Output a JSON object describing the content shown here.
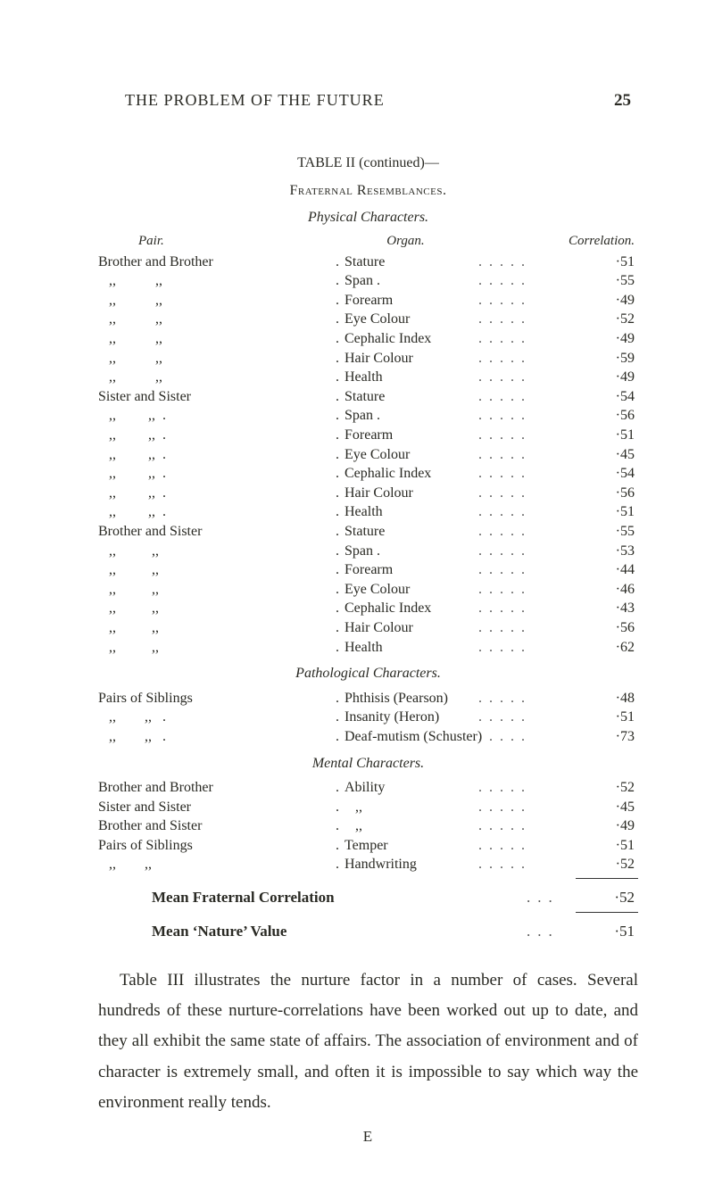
{
  "header": {
    "title": "THE PROBLEM OF THE FUTURE",
    "page": "25"
  },
  "table": {
    "label": "TABLE II (continued)—",
    "subtitle": "Fraternal Resemblances.",
    "columns": {
      "pair": "Pair.",
      "organ": "Organ.",
      "corr": "Correlation."
    },
    "sections": [
      {
        "heading": "Physical Characters.",
        "rows": [
          {
            "pair": "Brother and Brother",
            "organ": "Stature",
            "corr": "·51"
          },
          {
            "pair": "   ,,           ,,",
            "organ": "Span .",
            "corr": "·55"
          },
          {
            "pair": "   ,,           ,,",
            "organ": "Forearm",
            "corr": "·49"
          },
          {
            "pair": "   ,,           ,,",
            "organ": "Eye Colour",
            "corr": "·52"
          },
          {
            "pair": "   ,,           ,,",
            "organ": "Cephalic Index",
            "corr": "·49"
          },
          {
            "pair": "   ,,           ,,",
            "organ": "Hair Colour",
            "corr": "·59"
          },
          {
            "pair": "   ,,           ,,",
            "organ": "Health",
            "corr": "·49"
          },
          {
            "pair": "Sister and Sister",
            "organ": "Stature",
            "corr": "·54"
          },
          {
            "pair": "   ,,         ,,  .",
            "organ": "Span .",
            "corr": "·56"
          },
          {
            "pair": "   ,,         ,,  .",
            "organ": "Forearm",
            "corr": "·51"
          },
          {
            "pair": "   ,,         ,,  .",
            "organ": "Eye Colour",
            "corr": "·45"
          },
          {
            "pair": "   ,,         ,,  .",
            "organ": "Cephalic Index",
            "corr": "·54"
          },
          {
            "pair": "   ,,         ,,  .",
            "organ": "Hair Colour",
            "corr": "·56"
          },
          {
            "pair": "   ,,         ,,  .",
            "organ": "Health",
            "corr": "·51"
          },
          {
            "pair": "Brother and Sister",
            "organ": "Stature",
            "corr": "·55"
          },
          {
            "pair": "   ,,          ,,",
            "organ": "Span .",
            "corr": "·53"
          },
          {
            "pair": "   ,,          ,,",
            "organ": "Forearm",
            "corr": "·44"
          },
          {
            "pair": "   ,,          ,,",
            "organ": "Eye Colour",
            "corr": "·46"
          },
          {
            "pair": "   ,,          ,,",
            "organ": "Cephalic Index",
            "corr": "·43"
          },
          {
            "pair": "   ,,          ,,",
            "organ": "Hair Colour",
            "corr": "·56"
          },
          {
            "pair": "   ,,          ,,",
            "organ": "Health",
            "corr": "·62"
          }
        ]
      },
      {
        "heading": "Pathological Characters.",
        "rows": [
          {
            "pair": "Pairs of Siblings",
            "organ": "Phthisis (Pearson)",
            "corr": "·48"
          },
          {
            "pair": "   ,,        ,,   .",
            "organ": "Insanity (Heron)",
            "corr": "·51"
          },
          {
            "pair": "   ,,        ,,   .",
            "organ": "Deaf-mutism (Schuster)",
            "corr": "·73"
          }
        ]
      },
      {
        "heading": "Mental Characters.",
        "rows": [
          {
            "pair": "Brother and Brother",
            "organ": "Ability",
            "corr": "·52"
          },
          {
            "pair": "Sister and Sister",
            "organ": "   ,,",
            "corr": "·45"
          },
          {
            "pair": "Brother and Sister",
            "organ": "   ,,",
            "corr": "·49"
          },
          {
            "pair": "Pairs of Siblings",
            "organ": "Temper",
            "corr": "·51"
          },
          {
            "pair": "   ,,        ,,",
            "organ": "Handwriting",
            "corr": "·52"
          }
        ]
      }
    ],
    "summary": [
      {
        "label_html": "<b>Mean Fraternal Correlation</b>",
        "value": "·52"
      },
      {
        "label_html": "<b>Mean ‘Nature’ Value</b>",
        "value": "·51"
      }
    ]
  },
  "paragraph": "Table III illustrates the nurture factor in a number of cases. Several hundreds of these nurture-correlations have been worked out up to date, and they all exhibit the same state of affairs. The association of environment and of character is extremely small, and often it is im­possible to say which way the environment really tends.",
  "signature": "E"
}
